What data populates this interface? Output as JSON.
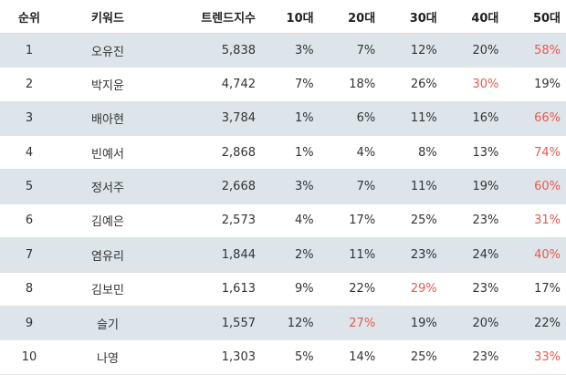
{
  "headers": {
    "rank": "순위",
    "keyword": "키워드",
    "trend": "트렌드지수",
    "age10": "10대",
    "age20": "20대",
    "age30": "30대",
    "age40": "40대",
    "age50": "50대"
  },
  "highlight_color": "#e8584f",
  "rows": [
    {
      "rank": "1",
      "keyword": "오유진",
      "trend": "5,838",
      "age10": "3%",
      "age20": "7%",
      "age30": "12%",
      "age40": "20%",
      "age50": "58%",
      "max": "age50"
    },
    {
      "rank": "2",
      "keyword": "박지윤",
      "trend": "4,742",
      "age10": "7%",
      "age20": "18%",
      "age30": "26%",
      "age40": "30%",
      "age50": "19%",
      "max": "age40"
    },
    {
      "rank": "3",
      "keyword": "배아현",
      "trend": "3,784",
      "age10": "1%",
      "age20": "6%",
      "age30": "11%",
      "age40": "16%",
      "age50": "66%",
      "max": "age50"
    },
    {
      "rank": "4",
      "keyword": "빈예서",
      "trend": "2,868",
      "age10": "1%",
      "age20": "4%",
      "age30": "8%",
      "age40": "13%",
      "age50": "74%",
      "max": "age50"
    },
    {
      "rank": "5",
      "keyword": "정서주",
      "trend": "2,668",
      "age10": "3%",
      "age20": "7%",
      "age30": "11%",
      "age40": "19%",
      "age50": "60%",
      "max": "age50"
    },
    {
      "rank": "6",
      "keyword": "김예은",
      "trend": "2,573",
      "age10": "4%",
      "age20": "17%",
      "age30": "25%",
      "age40": "23%",
      "age50": "31%",
      "max": "age50"
    },
    {
      "rank": "7",
      "keyword": "염유리",
      "trend": "1,844",
      "age10": "2%",
      "age20": "11%",
      "age30": "23%",
      "age40": "24%",
      "age50": "40%",
      "max": "age50"
    },
    {
      "rank": "8",
      "keyword": "김보민",
      "trend": "1,613",
      "age10": "9%",
      "age20": "22%",
      "age30": "29%",
      "age40": "23%",
      "age50": "17%",
      "max": "age30"
    },
    {
      "rank": "9",
      "keyword": "슬기",
      "trend": "1,557",
      "age10": "12%",
      "age20": "27%",
      "age30": "19%",
      "age40": "20%",
      "age50": "22%",
      "max": "age20"
    },
    {
      "rank": "10",
      "keyword": "나영",
      "trend": "1,303",
      "age10": "5%",
      "age20": "14%",
      "age30": "25%",
      "age40": "23%",
      "age50": "33%",
      "max": "age50"
    }
  ]
}
